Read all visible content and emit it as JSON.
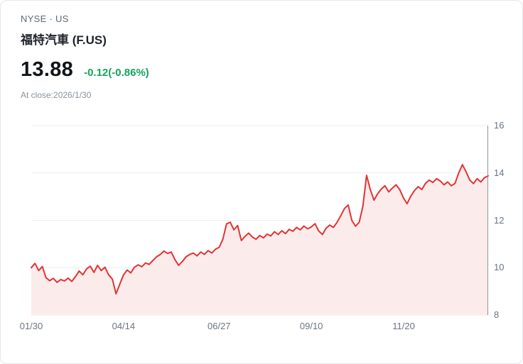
{
  "header": {
    "exchange": "NYSE · US",
    "name": "福特汽車 (F.US)",
    "price": "13.88",
    "change": "-0.12(-0.86%)",
    "close_note": "At close:2026/1/30"
  },
  "colors": {
    "line": "#e23333",
    "fill": "#fcebeb",
    "change": "#14a35b",
    "grid": "#e9ecef",
    "axis": "#8d949b"
  },
  "chart_data": {
    "type": "area",
    "title": "福特汽車 (F.US) price history",
    "xlabel": "",
    "ylabel": "",
    "ylim": [
      8,
      16
    ],
    "yticks": [
      8,
      10,
      12,
      14,
      16
    ],
    "x_ticks": [
      {
        "label": "01/30",
        "pos": 0.0
      },
      {
        "label": "04/14",
        "pos": 0.202
      },
      {
        "label": "06/27",
        "pos": 0.411
      },
      {
        "label": "09/10",
        "pos": 0.613
      },
      {
        "label": "11/20",
        "pos": 0.815
      }
    ],
    "values": [
      10.0,
      10.18,
      9.88,
      10.05,
      9.58,
      9.45,
      9.55,
      9.38,
      9.5,
      9.44,
      9.56,
      9.42,
      9.62,
      9.86,
      9.7,
      9.95,
      10.06,
      9.8,
      10.1,
      9.88,
      10.02,
      9.7,
      9.52,
      8.9,
      9.3,
      9.68,
      9.9,
      9.78,
      10.02,
      10.12,
      10.04,
      10.2,
      10.14,
      10.3,
      10.46,
      10.56,
      10.7,
      10.6,
      10.66,
      10.34,
      10.1,
      10.26,
      10.46,
      10.56,
      10.62,
      10.5,
      10.66,
      10.56,
      10.72,
      10.62,
      10.78,
      10.86,
      11.2,
      11.85,
      11.92,
      11.6,
      11.78,
      11.15,
      11.32,
      11.46,
      11.3,
      11.2,
      11.36,
      11.26,
      11.42,
      11.34,
      11.52,
      11.4,
      11.56,
      11.44,
      11.62,
      11.54,
      11.7,
      11.6,
      11.76,
      11.64,
      11.72,
      11.86,
      11.55,
      11.4,
      11.66,
      11.8,
      11.7,
      11.92,
      12.2,
      12.5,
      12.65,
      12.0,
      11.75,
      11.92,
      12.6,
      13.9,
      13.3,
      12.85,
      13.12,
      13.32,
      13.46,
      13.2,
      13.36,
      13.5,
      13.3,
      12.95,
      12.7,
      13.02,
      13.26,
      13.42,
      13.3,
      13.56,
      13.7,
      13.6,
      13.76,
      13.66,
      13.5,
      13.62,
      13.46,
      13.56,
      14.0,
      14.35,
      14.05,
      13.7,
      13.55,
      13.76,
      13.62,
      13.8,
      13.88
    ]
  }
}
